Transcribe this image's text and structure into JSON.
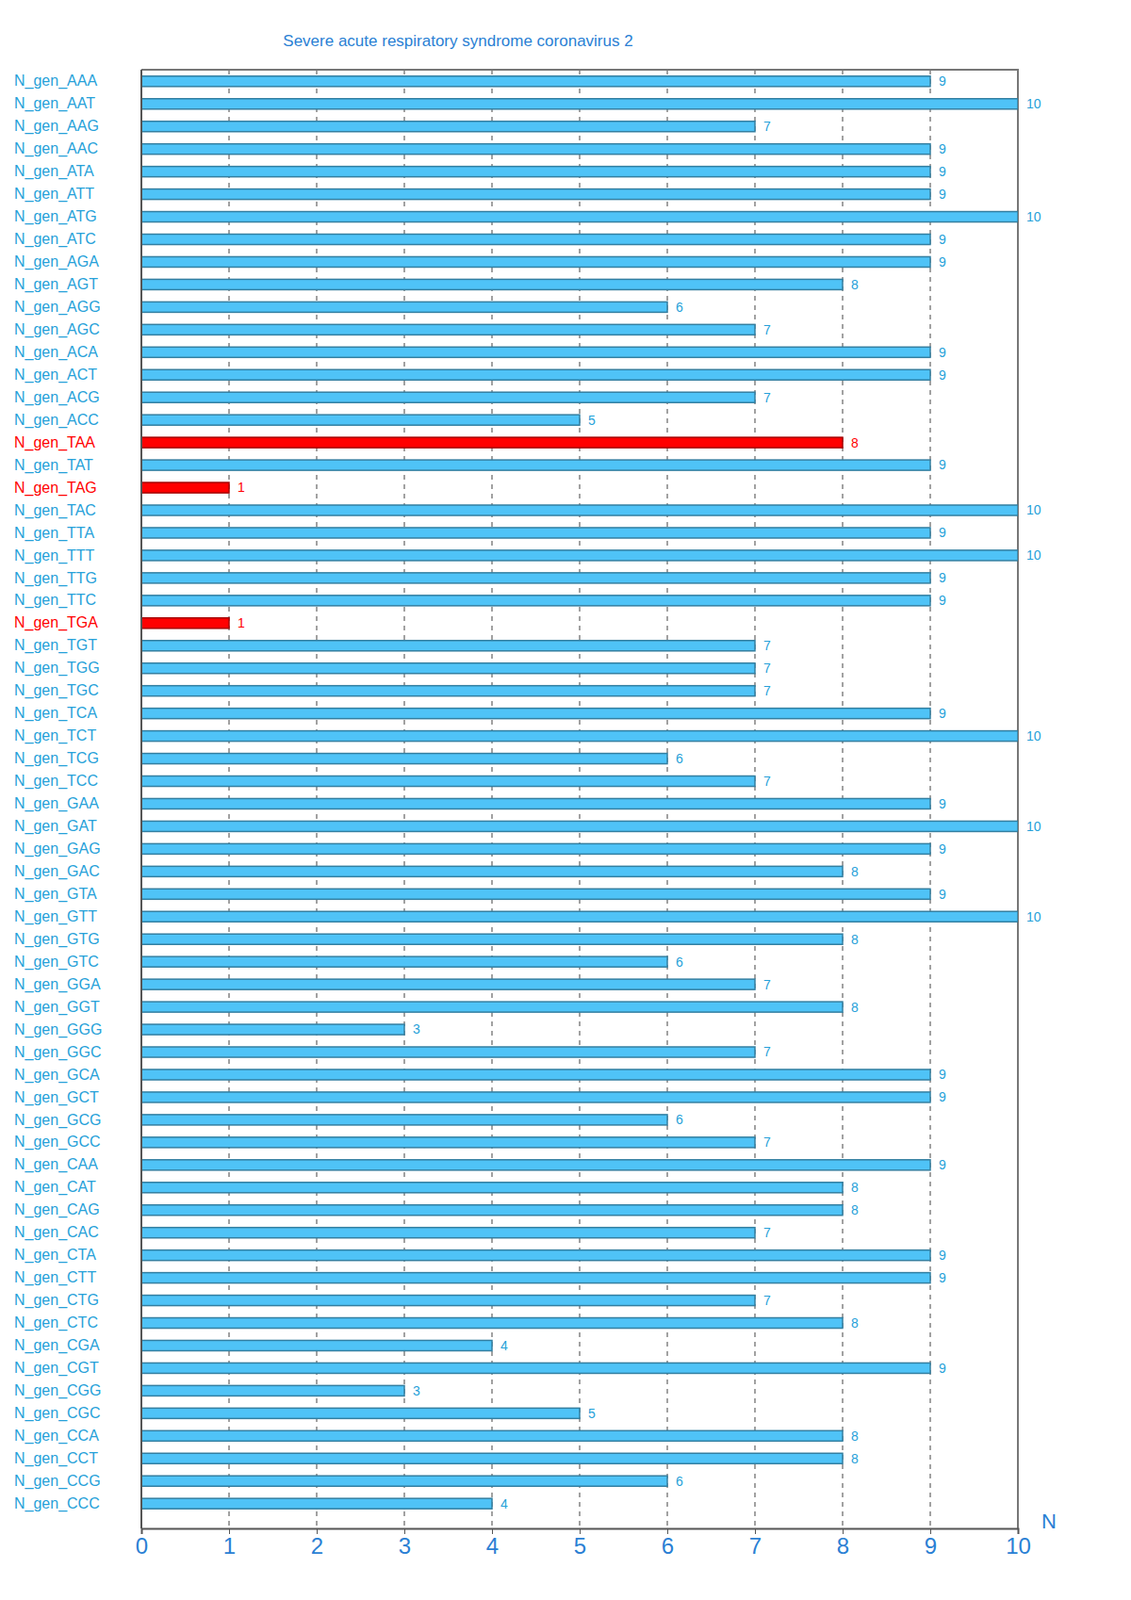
{
  "chart_data": {
    "type": "bar",
    "orientation": "horizontal",
    "title": "Severe acute respiratory syndrome coronavirus 2",
    "xlabel": "N",
    "categories": [
      "N_gen_AAA",
      "N_gen_AAT",
      "N_gen_AAG",
      "N_gen_AAC",
      "N_gen_ATA",
      "N_gen_ATT",
      "N_gen_ATG",
      "N_gen_ATC",
      "N_gen_AGA",
      "N_gen_AGT",
      "N_gen_AGG",
      "N_gen_AGC",
      "N_gen_ACA",
      "N_gen_ACT",
      "N_gen_ACG",
      "N_gen_ACC",
      "N_gen_TAA",
      "N_gen_TAT",
      "N_gen_TAG",
      "N_gen_TAC",
      "N_gen_TTA",
      "N_gen_TTT",
      "N_gen_TTG",
      "N_gen_TTC",
      "N_gen_TGA",
      "N_gen_TGT",
      "N_gen_TGG",
      "N_gen_TGC",
      "N_gen_TCA",
      "N_gen_TCT",
      "N_gen_TCG",
      "N_gen_TCC",
      "N_gen_GAA",
      "N_gen_GAT",
      "N_gen_GAG",
      "N_gen_GAC",
      "N_gen_GTA",
      "N_gen_GTT",
      "N_gen_GTG",
      "N_gen_GTC",
      "N_gen_GGA",
      "N_gen_GGT",
      "N_gen_GGG",
      "N_gen_GGC",
      "N_gen_GCA",
      "N_gen_GCT",
      "N_gen_GCG",
      "N_gen_GCC",
      "N_gen_CAA",
      "N_gen_CAT",
      "N_gen_CAG",
      "N_gen_CAC",
      "N_gen_CTA",
      "N_gen_CTT",
      "N_gen_CTG",
      "N_gen_CTC",
      "N_gen_CGA",
      "N_gen_CGT",
      "N_gen_CGG",
      "N_gen_CGC",
      "N_gen_CCA",
      "N_gen_CCT",
      "N_gen_CCG",
      "N_gen_CCC"
    ],
    "values": [
      9,
      10,
      7,
      9,
      9,
      9,
      10,
      9,
      9,
      8,
      6,
      7,
      9,
      9,
      7,
      5,
      8,
      9,
      1,
      10,
      9,
      10,
      9,
      9,
      1,
      7,
      7,
      7,
      9,
      10,
      6,
      7,
      9,
      10,
      9,
      8,
      9,
      10,
      8,
      6,
      7,
      8,
      3,
      7,
      9,
      9,
      6,
      7,
      9,
      8,
      8,
      7,
      9,
      9,
      7,
      8,
      4,
      9,
      3,
      5,
      8,
      8,
      6,
      4
    ],
    "colors": [
      "#4fc3f7",
      "#4fc3f7",
      "#4fc3f7",
      "#4fc3f7",
      "#4fc3f7",
      "#4fc3f7",
      "#4fc3f7",
      "#4fc3f7",
      "#4fc3f7",
      "#4fc3f7",
      "#4fc3f7",
      "#4fc3f7",
      "#4fc3f7",
      "#4fc3f7",
      "#4fc3f7",
      "#4fc3f7",
      "#ff0000",
      "#4fc3f7",
      "#ff0000",
      "#4fc3f7",
      "#4fc3f7",
      "#4fc3f7",
      "#4fc3f7",
      "#4fc3f7",
      "#ff0000",
      "#4fc3f7",
      "#4fc3f7",
      "#4fc3f7",
      "#4fc3f7",
      "#4fc3f7",
      "#4fc3f7",
      "#4fc3f7",
      "#4fc3f7",
      "#4fc3f7",
      "#4fc3f7",
      "#4fc3f7",
      "#4fc3f7",
      "#4fc3f7",
      "#4fc3f7",
      "#4fc3f7",
      "#4fc3f7",
      "#4fc3f7",
      "#4fc3f7",
      "#4fc3f7",
      "#4fc3f7",
      "#4fc3f7",
      "#4fc3f7",
      "#4fc3f7",
      "#4fc3f7",
      "#4fc3f7",
      "#4fc3f7",
      "#4fc3f7",
      "#4fc3f7",
      "#4fc3f7",
      "#4fc3f7",
      "#4fc3f7",
      "#4fc3f7",
      "#4fc3f7",
      "#4fc3f7",
      "#4fc3f7",
      "#4fc3f7",
      "#4fc3f7",
      "#4fc3f7",
      "#4fc3f7"
    ],
    "xlim": [
      0,
      10
    ],
    "xticks": [
      0,
      1,
      2,
      3,
      4,
      5,
      6,
      7,
      8,
      9,
      10
    ],
    "grid": true,
    "data_labels": true
  }
}
